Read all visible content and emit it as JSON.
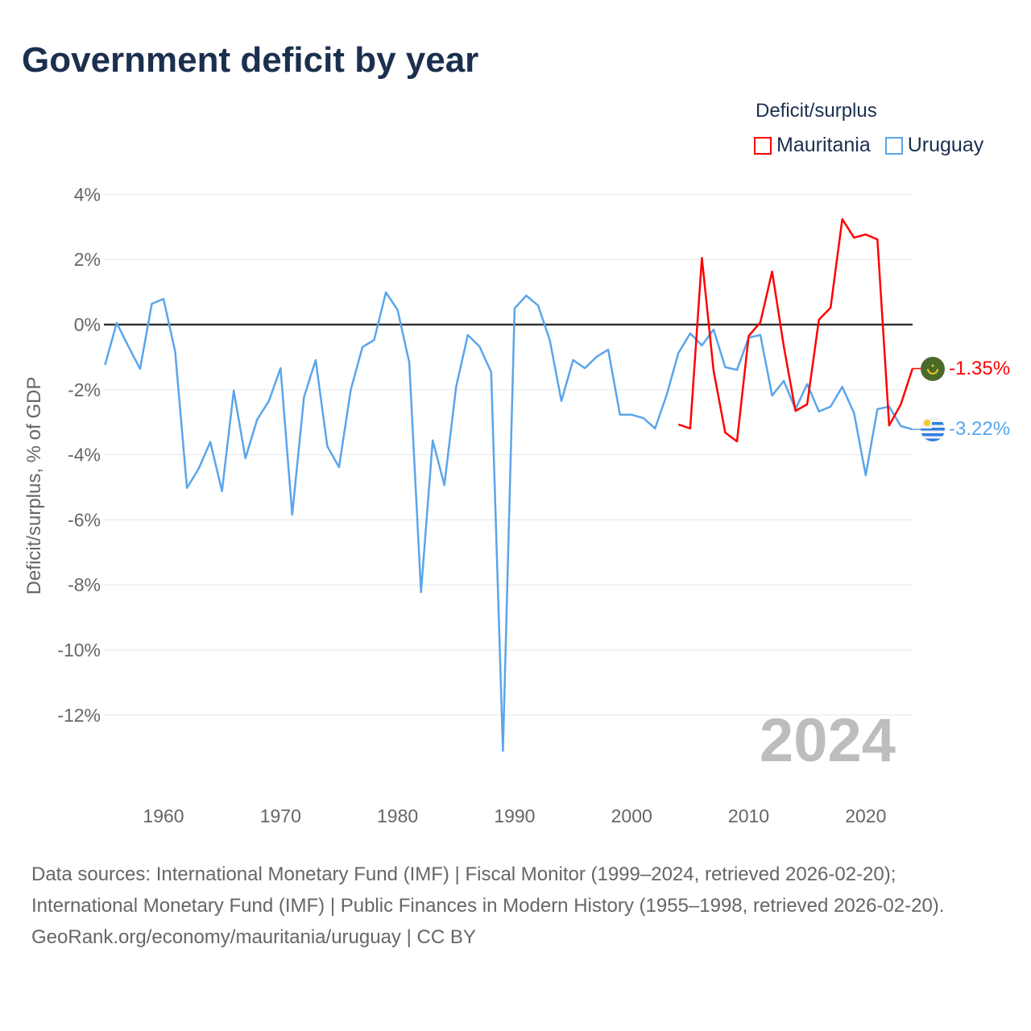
{
  "title": "Government deficit by year",
  "legend": {
    "title": "Deficit/surplus",
    "items": [
      {
        "name": "Mauritania",
        "color": "#ff0000"
      },
      {
        "name": "Uruguay",
        "color": "#5aa5eb"
      }
    ]
  },
  "chart_data": {
    "type": "line",
    "title": "Government deficit by year",
    "ylabel": "Deficit/surplus, % of GDP",
    "xlabel": "",
    "ylim": [
      -14,
      4
    ],
    "xlim": [
      1955,
      2024
    ],
    "yticks": [
      4,
      2,
      0,
      -2,
      -4,
      -6,
      -8,
      -10,
      -12
    ],
    "ytick_labels": [
      "4%",
      "2%",
      "0%",
      "-2%",
      "-4%",
      "-6%",
      "-8%",
      "-10%",
      "-12%"
    ],
    "xticks": [
      1960,
      1970,
      1980,
      1990,
      2000,
      2010,
      2020
    ],
    "xtick_labels": [
      "1960",
      "1970",
      "1980",
      "1990",
      "2000",
      "2010",
      "2020"
    ],
    "year_watermark": "2024",
    "grid": true,
    "series": [
      {
        "name": "Mauritania",
        "color": "#ff0000",
        "end_label": "-1.35%",
        "x": [
          2004,
          2005,
          2006,
          2007,
          2008,
          2009,
          2010,
          2011,
          2012,
          2013,
          2014,
          2015,
          2016,
          2017,
          2018,
          2019,
          2020,
          2021,
          2022,
          2023,
          2024
        ],
        "values": [
          -3.07,
          -3.19,
          2.05,
          -1.41,
          -3.32,
          -3.59,
          -0.35,
          0.07,
          1.63,
          -0.67,
          -2.65,
          -2.45,
          0.15,
          0.52,
          3.24,
          2.67,
          2.77,
          2.62,
          -3.1,
          -2.45,
          -1.35
        ]
      },
      {
        "name": "Uruguay",
        "color": "#5aa5eb",
        "end_label": "-3.22%",
        "x": [
          1955,
          1956,
          1957,
          1958,
          1959,
          1960,
          1961,
          1962,
          1963,
          1964,
          1965,
          1966,
          1967,
          1968,
          1969,
          1970,
          1971,
          1972,
          1973,
          1974,
          1975,
          1976,
          1977,
          1978,
          1979,
          1980,
          1981,
          1982,
          1983,
          1984,
          1985,
          1986,
          1987,
          1988,
          1989,
          1990,
          1991,
          1992,
          1993,
          1994,
          1995,
          1996,
          1997,
          1998,
          1999,
          2000,
          2001,
          2002,
          2003,
          2004,
          2005,
          2006,
          2007,
          2008,
          2009,
          2010,
          2011,
          2012,
          2013,
          2014,
          2015,
          2016,
          2017,
          2018,
          2019,
          2020,
          2021,
          2022,
          2023,
          2024
        ],
        "values": [
          -1.24,
          0.05,
          -0.67,
          -1.36,
          0.64,
          0.79,
          -0.84,
          -5.02,
          -4.43,
          -3.61,
          -5.12,
          -2.03,
          -4.11,
          -2.92,
          -2.35,
          -1.34,
          -5.84,
          -2.23,
          -1.09,
          -3.74,
          -4.38,
          -2.0,
          -0.69,
          -0.47,
          0.99,
          0.45,
          -1.16,
          -8.22,
          -3.56,
          -4.93,
          -1.91,
          -0.32,
          -0.67,
          -1.46,
          -13.1,
          0.5,
          0.89,
          0.59,
          -0.47,
          -2.35,
          -1.09,
          -1.34,
          -0.99,
          -0.77,
          -2.77,
          -2.77,
          -2.87,
          -3.19,
          -2.15,
          -0.87,
          -0.27,
          -0.64,
          -0.15,
          -1.31,
          -1.39,
          -0.4,
          -0.32,
          -2.18,
          -1.73,
          -2.6,
          -1.83,
          -2.67,
          -2.52,
          -1.91,
          -2.72,
          -4.63,
          -2.6,
          -2.52,
          -3.12,
          -3.22
        ]
      }
    ]
  },
  "footer": {
    "sources": "Data sources: International Monetary Fund (IMF) | Fiscal Monitor (1999–2024, retrieved 2026-02-20); International Monetary Fund (IMF) | Public Finances in Modern History (1955–1998, retrieved 2026-02-20).",
    "link": "GeoRank.org/economy/mauritania/uruguay",
    "license": " | CC BY"
  }
}
